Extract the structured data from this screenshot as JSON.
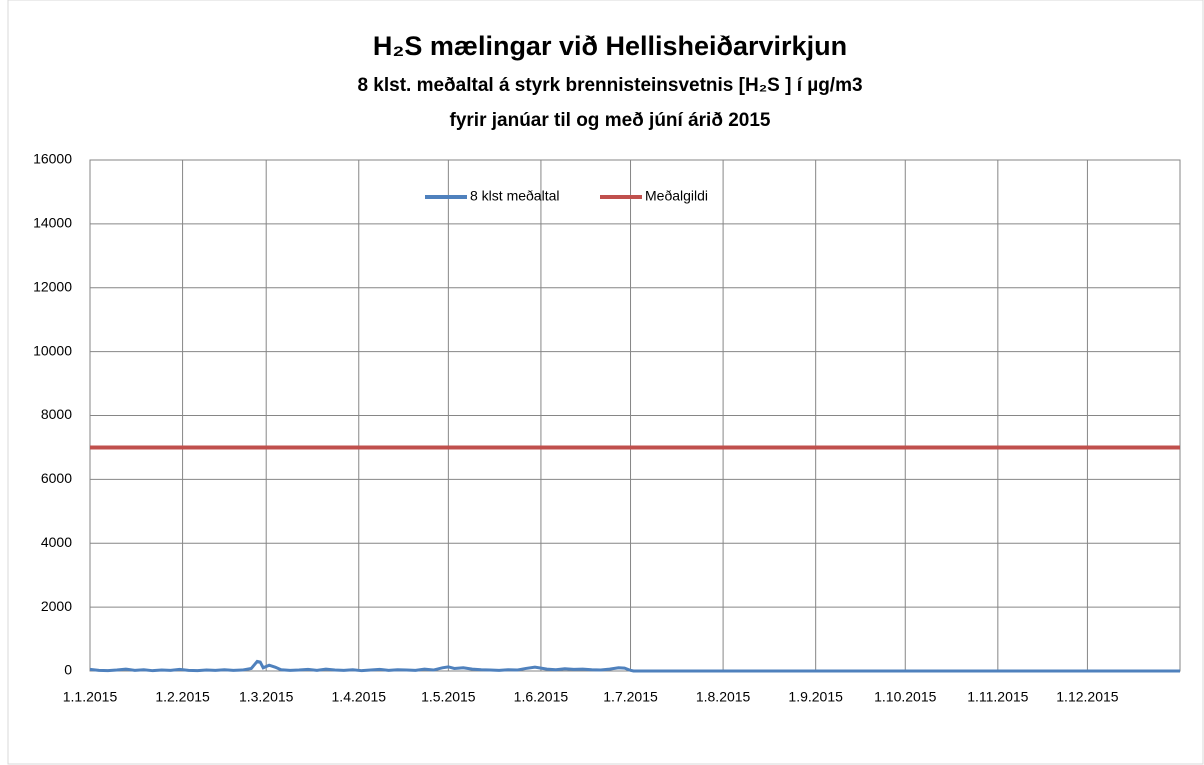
{
  "chart_data": {
    "type": "line",
    "title": "H₂S mælingar við Hellisheiðarvirkjun",
    "subtitle": [
      "8 klst. meðaltal á styrk brennisteinsvetnis [H₂S ] í µg/m3",
      "fyrir janúar til og með júní árið 2015"
    ],
    "xlim": [
      0,
      365
    ],
    "xticks": [
      {
        "value": 0,
        "label": "1.1.2015"
      },
      {
        "value": 31,
        "label": "1.2.2015"
      },
      {
        "value": 59,
        "label": "1.3.2015"
      },
      {
        "value": 90,
        "label": "1.4.2015"
      },
      {
        "value": 120,
        "label": "1.5.2015"
      },
      {
        "value": 151,
        "label": "1.6.2015"
      },
      {
        "value": 181,
        "label": "1.7.2015"
      },
      {
        "value": 212,
        "label": "1.8.2015"
      },
      {
        "value": 243,
        "label": "1.9.2015"
      },
      {
        "value": 273,
        "label": "1.10.2015"
      },
      {
        "value": 304,
        "label": "1.11.2015"
      },
      {
        "value": 334,
        "label": "1.12.2015"
      }
    ],
    "ylim": [
      0,
      16000
    ],
    "yticks": [
      0,
      2000,
      4000,
      6000,
      8000,
      10000,
      12000,
      14000,
      16000
    ],
    "grid": true,
    "legend": "top",
    "series": [
      {
        "name": "8 klst meðaltal",
        "color": "#4f81bd",
        "x": [
          0,
          3,
          6,
          9,
          12,
          15,
          18,
          21,
          24,
          27,
          30,
          33,
          36,
          39,
          42,
          45,
          48,
          51,
          54,
          56,
          57,
          58,
          60,
          62,
          64,
          67,
          70,
          73,
          76,
          79,
          82,
          85,
          88,
          91,
          94,
          97,
          100,
          103,
          106,
          109,
          112,
          115,
          118,
          120,
          122,
          125,
          128,
          131,
          134,
          137,
          140,
          143,
          146,
          149,
          151,
          153,
          156,
          159,
          162,
          165,
          168,
          171,
          174,
          177,
          179,
          181,
          182,
          365
        ],
        "values": [
          50,
          20,
          10,
          30,
          60,
          20,
          40,
          10,
          30,
          20,
          50,
          20,
          10,
          30,
          20,
          40,
          20,
          30,
          80,
          300,
          280,
          100,
          180,
          120,
          40,
          20,
          30,
          50,
          20,
          60,
          30,
          20,
          40,
          10,
          30,
          50,
          20,
          40,
          30,
          20,
          60,
          30,
          100,
          130,
          80,
          100,
          60,
          40,
          30,
          20,
          40,
          30,
          80,
          120,
          90,
          60,
          40,
          70,
          50,
          60,
          40,
          30,
          60,
          100,
          90,
          20,
          0,
          0
        ]
      },
      {
        "name": "Meðalgildi",
        "color": "#c0504d",
        "x": [
          0,
          365
        ],
        "values": [
          7000,
          7000
        ]
      }
    ]
  }
}
